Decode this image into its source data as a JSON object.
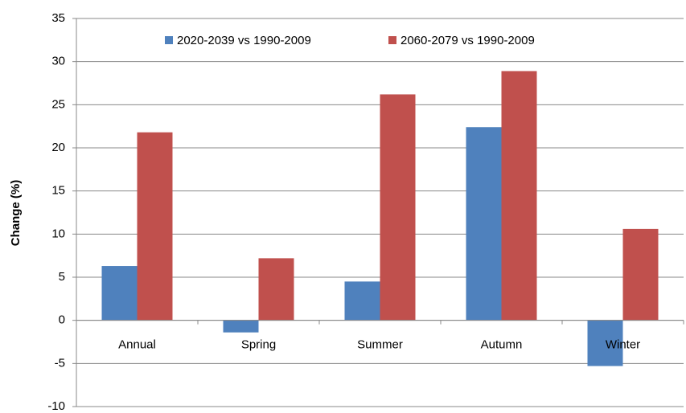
{
  "chart_data": {
    "type": "bar",
    "y_label": "Change (%)",
    "categories": [
      "Annual",
      "Spring",
      "Summer",
      "Autumn",
      "Winter"
    ],
    "series": [
      {
        "name": "2020-2039 vs 1990-2009",
        "color": "#4f81bd",
        "values": [
          6.3,
          -1.4,
          4.5,
          22.4,
          -5.3
        ]
      },
      {
        "name": "2060-2079 vs 1990-2009",
        "color": "#c0504d",
        "values": [
          21.8,
          7.2,
          26.2,
          28.9,
          10.6
        ]
      }
    ],
    "ylim": [
      -10,
      35
    ],
    "yticks": [
      -10,
      -5,
      0,
      5,
      10,
      15,
      20,
      25,
      30,
      35
    ],
    "grid": true,
    "legend": "top"
  }
}
